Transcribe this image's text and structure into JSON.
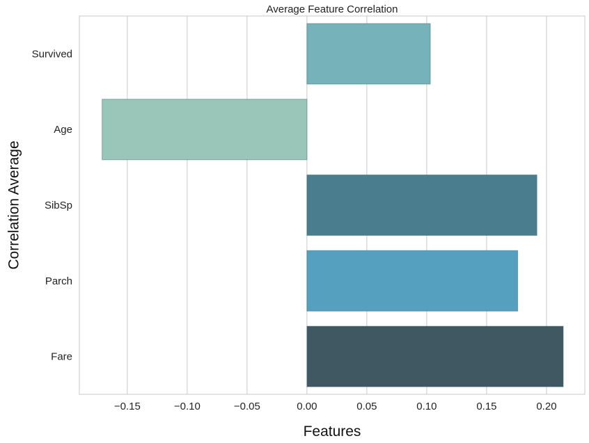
{
  "chart_data": {
    "type": "bar",
    "orientation": "horizontal",
    "title": "Average Feature Correlation",
    "xlabel": "Features",
    "ylabel": "Correlation Average",
    "categories": [
      "Survived",
      "Age",
      "SibSp",
      "Parch",
      "Fare"
    ],
    "values": [
      0.103,
      -0.171,
      0.192,
      0.176,
      0.214
    ],
    "colors": [
      "#76b2b9",
      "#99c6b9",
      "#4a7d8e",
      "#55a0be",
      "#405861"
    ],
    "xlim": [
      -0.19,
      0.232
    ],
    "xticks": [
      -0.15,
      -0.1,
      -0.05,
      0.0,
      0.05,
      0.1,
      0.15,
      0.2
    ],
    "xtick_labels": [
      "−0.15",
      "−0.10",
      "−0.05",
      "0.00",
      "0.05",
      "0.10",
      "0.15",
      "0.20"
    ],
    "grid": "vertical"
  }
}
